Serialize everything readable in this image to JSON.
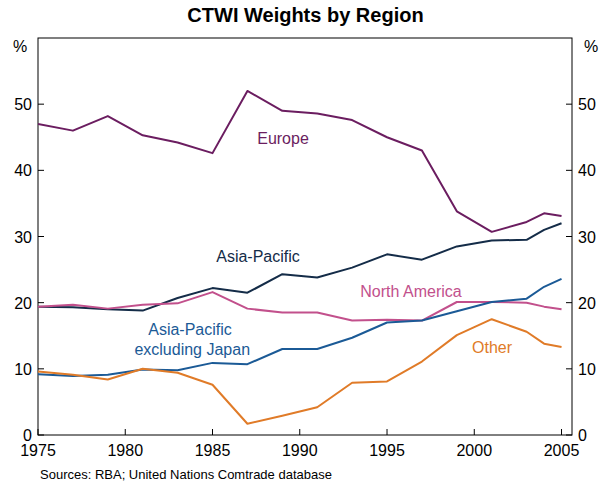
{
  "chart_data": {
    "type": "line",
    "title": "CTWI Weights by Region",
    "y_label": "%",
    "source": "Sources: RBA; United Nations Comtrade database",
    "x": [
      1975,
      1977,
      1979,
      1981,
      1983,
      1985,
      1987,
      1989,
      1991,
      1993,
      1995,
      1997,
      1999,
      2001,
      2003,
      2004,
      2005
    ],
    "xlim": [
      1975,
      2005.6
    ],
    "xticks": [
      1975,
      1980,
      1985,
      1990,
      1995,
      2000,
      2005
    ],
    "ylim": [
      0,
      60
    ],
    "yticks": [
      0,
      10,
      20,
      30,
      40,
      50
    ],
    "grid": false,
    "series": [
      {
        "name": "Europe",
        "color": "#6b1d60",
        "values": [
          47,
          46,
          48.2,
          45.3,
          44.2,
          42.6,
          52,
          49,
          48.6,
          47.6,
          45,
          43,
          33.8,
          30.7,
          32.2,
          33.5,
          33.1
        ]
      },
      {
        "name": "Asia-Pacific",
        "color": "#142c48",
        "values": [
          19.4,
          19.3,
          19,
          18.8,
          20.7,
          22.2,
          21.5,
          24.3,
          23.8,
          25.3,
          27.3,
          26.5,
          28.5,
          29.4,
          29.5,
          31,
          32
        ]
      },
      {
        "name": "North America",
        "color": "#c2508c",
        "values": [
          19.4,
          19.7,
          19.1,
          19.7,
          19.9,
          21.6,
          19.1,
          18.5,
          18.5,
          17.3,
          17.4,
          17.3,
          20.1,
          20.1,
          20,
          19.4,
          19
        ]
      },
      {
        "name": "Asia-Pacific excluding Japan",
        "color": "#1b5a96",
        "values": [
          9.2,
          8.9,
          9.1,
          9.9,
          9.8,
          10.9,
          10.7,
          13,
          13,
          14.7,
          17,
          17.3,
          18.7,
          20.1,
          20.6,
          22.4,
          23.6
        ]
      },
      {
        "name": "Other",
        "color": "#e07b28",
        "values": [
          9.6,
          9.1,
          8.4,
          10,
          9.4,
          7.6,
          1.7,
          2.9,
          4.2,
          7.9,
          8.1,
          11.1,
          15.1,
          17.5,
          15.6,
          13.8,
          13.3
        ]
      }
    ]
  }
}
